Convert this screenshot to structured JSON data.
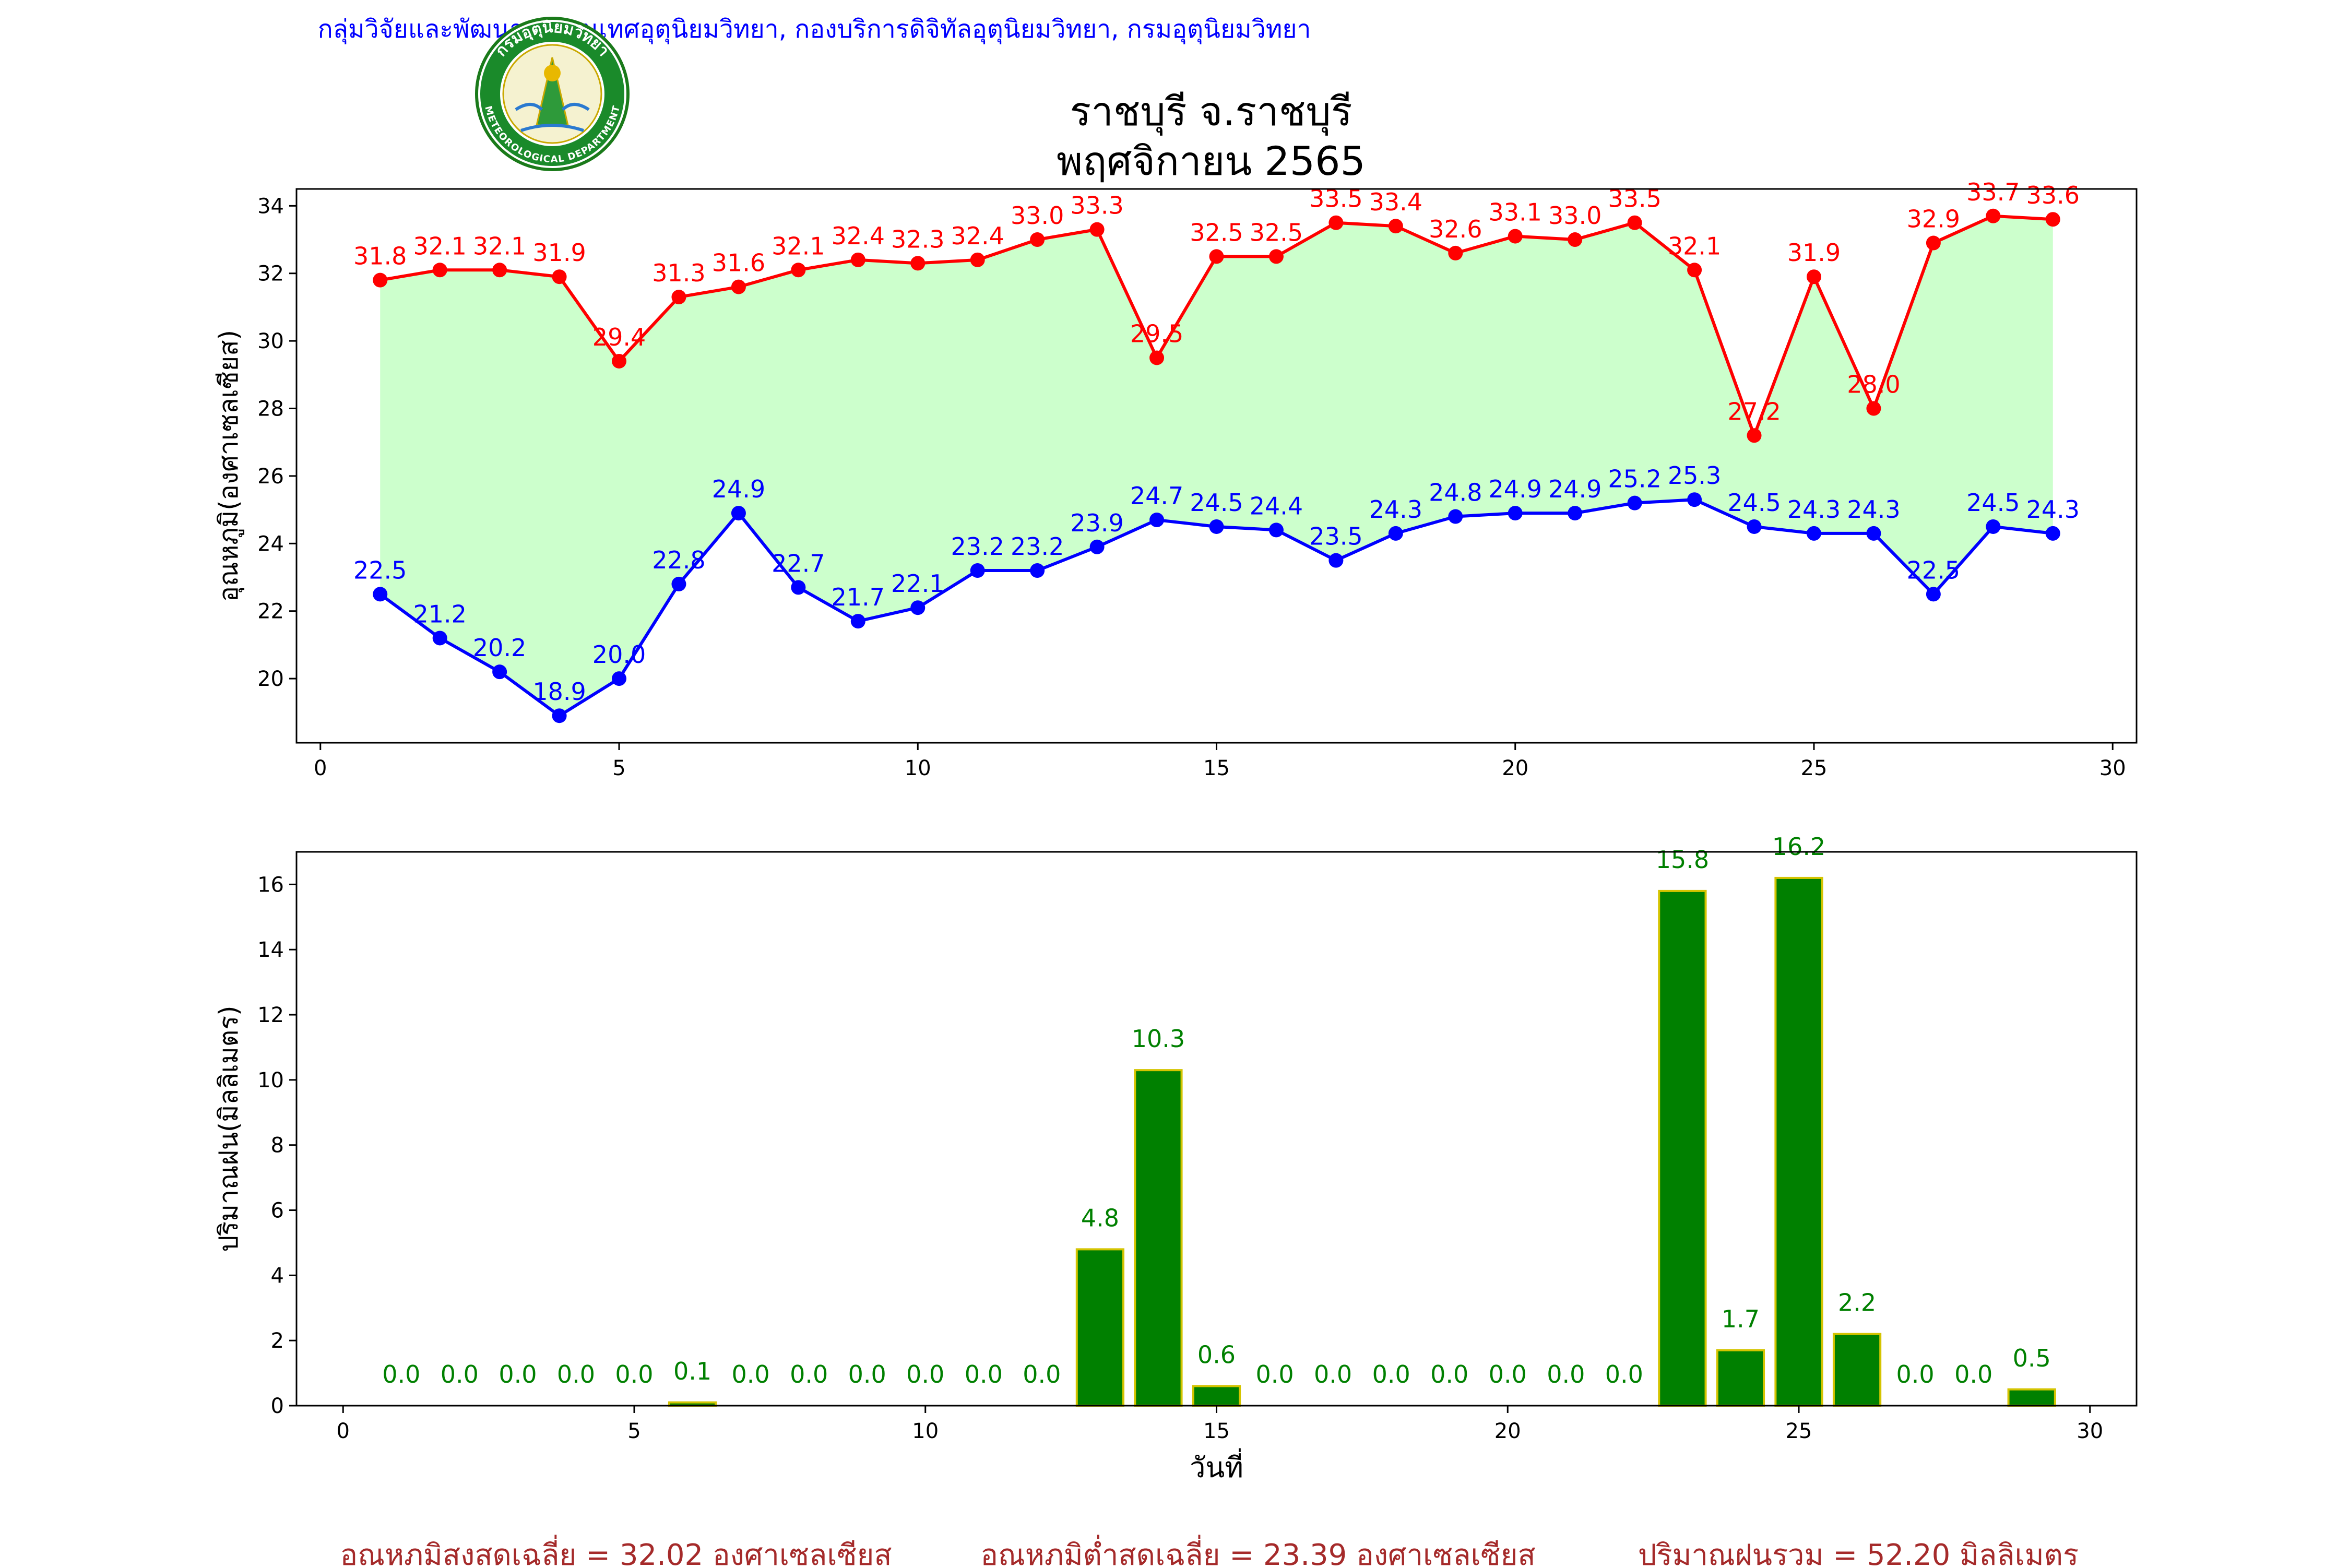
{
  "header": {
    "agency": "กลุ่มวิจัยและพัฒนาสารสนเทศอุตุนิยมวิทยา, กองบริการดิจิทัลอุตุนิยมวิทยา, กรมอุตุนิยมวิทยา",
    "title_line1": "ราชบุรี จ.ราชบุรี",
    "title_line2": "พฤศจิกายน 2565",
    "logo_text_top": "กรมอุตุนิยมวิทยา",
    "logo_text_bottom": "METEOROLOGICAL DEPARTMENT"
  },
  "colors": {
    "max_line": "#ff0000",
    "min_line": "#0000ff",
    "fill": "#ccffcc",
    "bar_fill": "#008000",
    "bar_edge": "#d4c400",
    "bar_label": "#008000",
    "agency_text": "#0000ff",
    "summary_text": "#a52a2a"
  },
  "chart_data": [
    {
      "type": "line",
      "ylabel": "อุณหภูมิ(องศาเซลเซียส)",
      "xlim": [
        -0.4,
        30.4
      ],
      "ylim": [
        18.1,
        34.5
      ],
      "xticks": [
        0,
        5,
        10,
        15,
        20,
        25,
        30
      ],
      "yticks": [
        20,
        22,
        24,
        26,
        28,
        30,
        32,
        34
      ],
      "x": [
        1,
        2,
        3,
        4,
        5,
        6,
        7,
        8,
        9,
        10,
        11,
        12,
        13,
        14,
        15,
        16,
        17,
        18,
        19,
        20,
        21,
        22,
        23,
        24,
        25,
        26,
        27,
        28,
        29
      ],
      "series": [
        {
          "key": "max",
          "values": [
            31.8,
            32.1,
            32.1,
            31.9,
            29.4,
            31.3,
            31.6,
            32.1,
            32.4,
            32.3,
            32.4,
            33.0,
            33.3,
            29.5,
            32.5,
            32.5,
            33.5,
            33.4,
            32.6,
            33.1,
            33.0,
            33.5,
            32.1,
            27.2,
            31.9,
            28.0,
            32.9,
            33.7,
            33.6
          ]
        },
        {
          "key": "min",
          "values": [
            22.5,
            21.2,
            20.2,
            18.9,
            20.0,
            22.8,
            24.9,
            22.7,
            21.7,
            22.1,
            23.2,
            23.2,
            23.9,
            24.7,
            24.5,
            24.4,
            23.5,
            24.3,
            24.8,
            24.9,
            24.9,
            25.2,
            25.3,
            24.5,
            24.3,
            24.3,
            22.5,
            24.5,
            24.3
          ]
        }
      ]
    },
    {
      "type": "bar",
      "ylabel": "ปริมาณฝน(มิลลิเมตร)",
      "xlabel": "วันที่",
      "xlim": [
        -0.8,
        30.8
      ],
      "ylim": [
        0,
        17
      ],
      "xticks": [
        0,
        5,
        10,
        15,
        20,
        25,
        30
      ],
      "yticks": [
        0,
        2,
        4,
        6,
        8,
        10,
        12,
        14,
        16
      ],
      "x": [
        1,
        2,
        3,
        4,
        5,
        6,
        7,
        8,
        9,
        10,
        11,
        12,
        13,
        14,
        15,
        16,
        17,
        18,
        19,
        20,
        21,
        22,
        23,
        24,
        25,
        26,
        27,
        28,
        29
      ],
      "values": [
        0.0,
        0.0,
        0.0,
        0.0,
        0.0,
        0.1,
        0.0,
        0.0,
        0.0,
        0.0,
        0.0,
        0.0,
        4.8,
        10.3,
        0.6,
        0.0,
        0.0,
        0.0,
        0.0,
        0.0,
        0.0,
        0.0,
        15.8,
        1.7,
        16.2,
        2.2,
        0.0,
        0.0,
        0.5
      ]
    }
  ],
  "summary": {
    "avg_max": "อุณหภูมิสูงสุดเฉลี่ย = 32.02 องศาเซลเซียส",
    "avg_min": "อุณหภูมิต่ำสุดเฉลี่ย = 23.39 องศาเซลเซียส",
    "total_rain": "ปริมาณฝนรวม = 52.20 มิลลิเมตร"
  }
}
